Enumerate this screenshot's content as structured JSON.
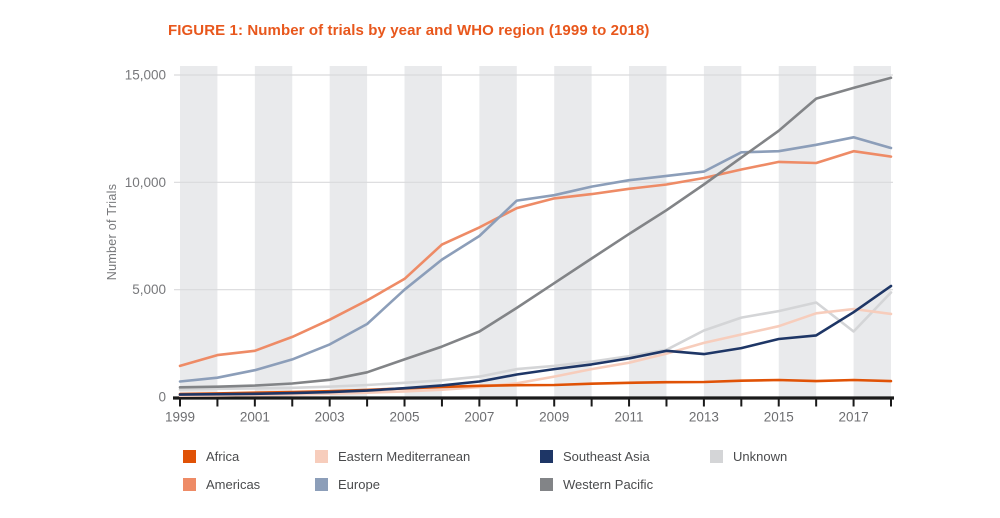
{
  "figure": {
    "title": "FIGURE 1: Number of trials by year and WHO region (1999 to 2018)",
    "title_color": "#E8571C"
  },
  "chart_data": {
    "type": "line",
    "title": "FIGURE 1: Number of trials by year and WHO region (1999 to 2018)",
    "ylabel": "Number of Trials",
    "xlabel": "",
    "x": [
      1999,
      2000,
      2001,
      2002,
      2003,
      2004,
      2005,
      2006,
      2007,
      2008,
      2009,
      2010,
      2011,
      2012,
      2013,
      2014,
      2015,
      2016,
      2017,
      2018
    ],
    "x_tick_labels": [
      "1999",
      "2001",
      "2003",
      "2005",
      "2007",
      "2009",
      "2011",
      "2013",
      "2015",
      "2017"
    ],
    "ylim": [
      0,
      15000
    ],
    "yticks": [
      0,
      5000,
      10000,
      15000
    ],
    "ytick_labels": [
      "0",
      "5,000",
      "10,000",
      "15,000"
    ],
    "grid": "horizontal gridlines at yticks, alternating vertical one-year background bands starting at 1999",
    "band_color": "#E9EAEC",
    "gridline_color": "#D9DADC",
    "axis_color": "#1A1A1A",
    "tick_label_color": "#6D6E71",
    "legend_position": "bottom",
    "series": [
      {
        "name": "Africa",
        "color": "#E05206",
        "values": [
          140,
          170,
          200,
          230,
          270,
          330,
          400,
          470,
          520,
          550,
          560,
          620,
          660,
          690,
          700,
          760,
          790,
          740,
          790,
          740
        ]
      },
      {
        "name": "Americas",
        "color": "#EE8B66",
        "values": [
          1450,
          1950,
          2150,
          2800,
          3600,
          4500,
          5500,
          7100,
          7900,
          8800,
          9250,
          9450,
          9700,
          9900,
          10200,
          10600,
          10950,
          10900,
          11450,
          11200
        ]
      },
      {
        "name": "Eastern Mediterranean",
        "color": "#F7CDBC",
        "values": [
          60,
          75,
          95,
          120,
          150,
          200,
          260,
          340,
          460,
          640,
          950,
          1300,
          1600,
          2020,
          2520,
          2910,
          3300,
          3900,
          4100,
          3870
        ]
      },
      {
        "name": "Europe",
        "color": "#8C9EB9",
        "values": [
          720,
          900,
          1250,
          1750,
          2450,
          3400,
          5000,
          6400,
          7500,
          9150,
          9400,
          9800,
          10100,
          10300,
          10500,
          11400,
          11450,
          11750,
          12100,
          11600
        ]
      },
      {
        "name": "Southeast Asia",
        "color": "#1E3666",
        "values": [
          110,
          130,
          150,
          180,
          230,
          300,
          410,
          540,
          720,
          1050,
          1300,
          1520,
          1800,
          2150,
          2000,
          2280,
          2700,
          2870,
          3950,
          5170
        ]
      },
      {
        "name": "Western Pacific",
        "color": "#828487",
        "values": [
          450,
          480,
          530,
          630,
          800,
          1150,
          1750,
          2350,
          3050,
          4150,
          5300,
          6450,
          7600,
          8700,
          9900,
          11150,
          12400,
          13900,
          14400,
          14870
        ]
      },
      {
        "name": "Unknown",
        "color": "#D4D5D7",
        "values": [
          350,
          380,
          400,
          430,
          480,
          560,
          660,
          780,
          950,
          1300,
          1450,
          1650,
          1900,
          2200,
          3100,
          3700,
          4000,
          4400,
          3050,
          4870
        ]
      }
    ],
    "draw_order": [
      "Unknown",
      "Eastern Mediterranean",
      "Africa",
      "Southeast Asia",
      "Americas",
      "Europe",
      "Western Pacific"
    ]
  }
}
